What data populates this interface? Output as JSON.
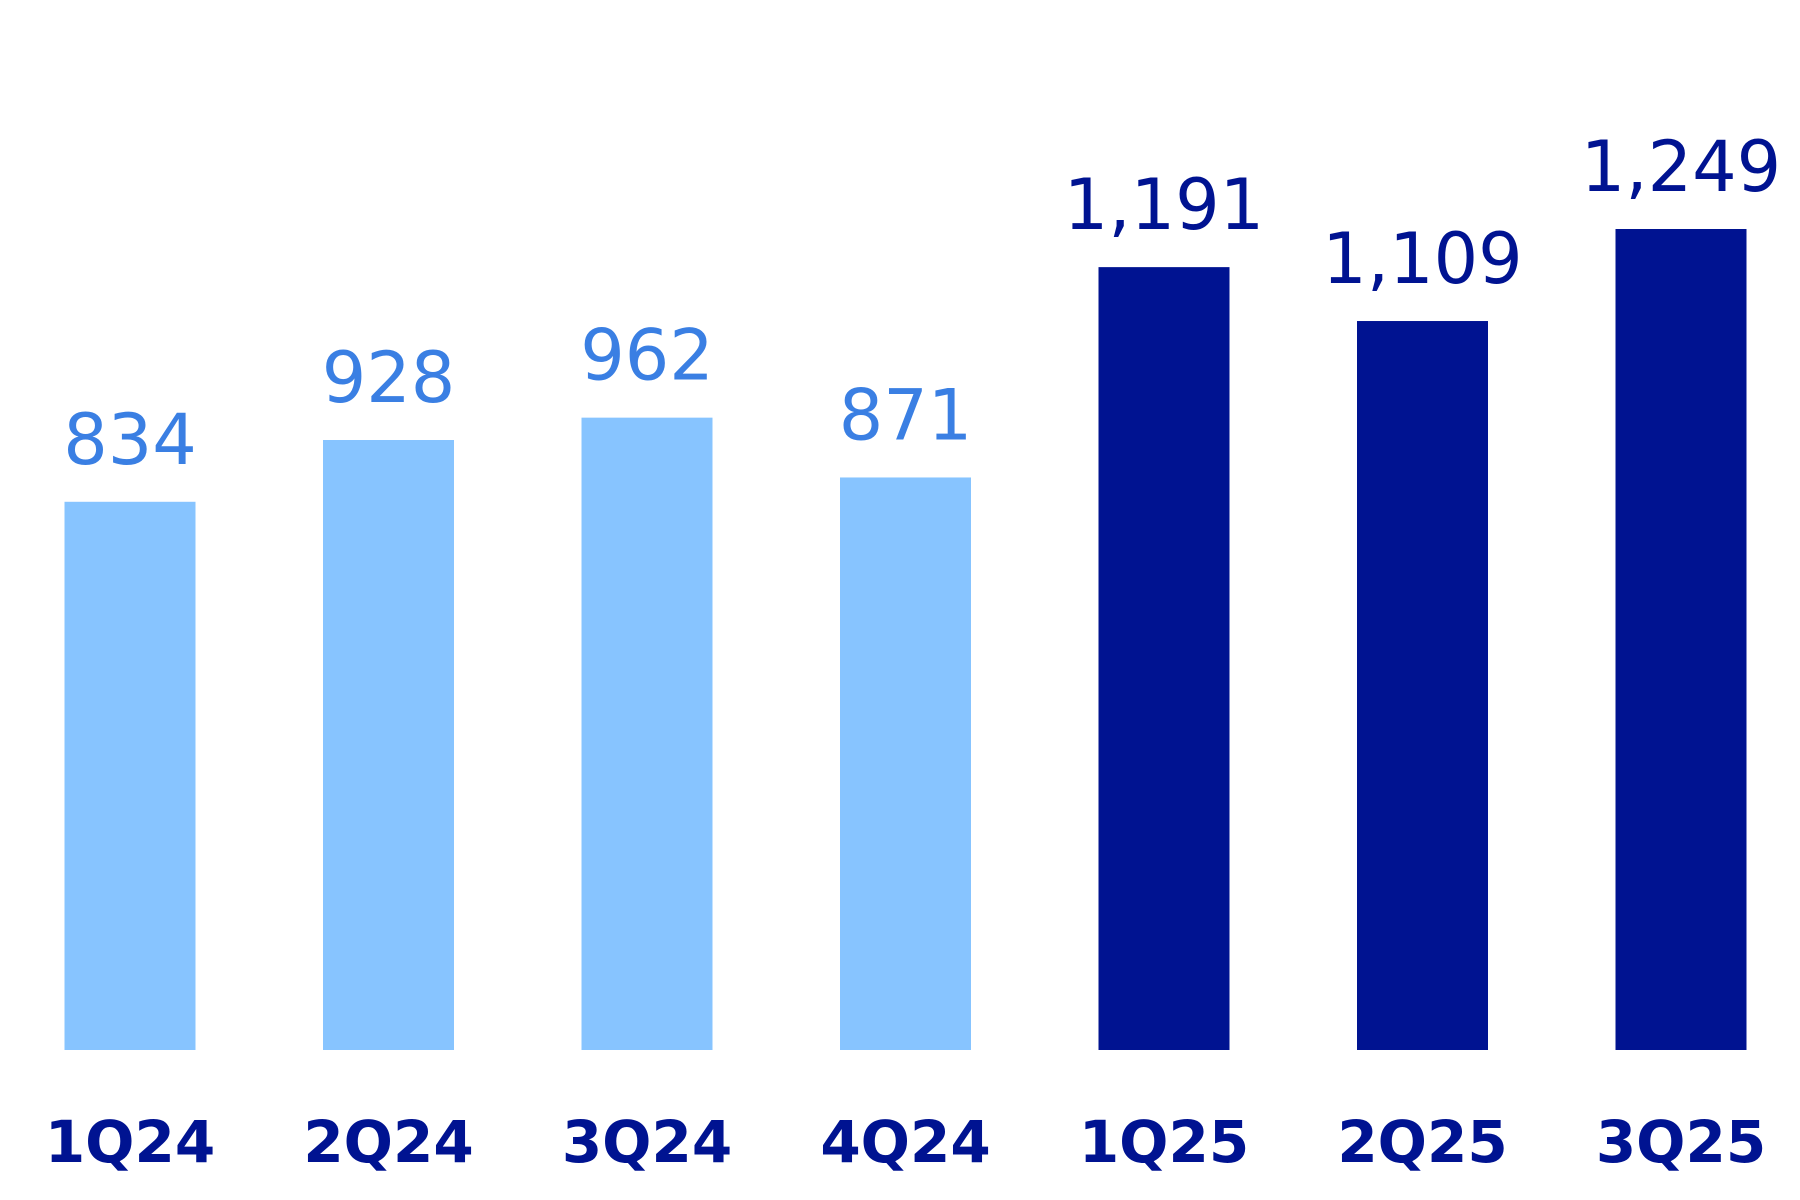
{
  "chart_data": {
    "type": "bar",
    "title": "",
    "xlabel": "",
    "ylabel": "",
    "categories": [
      "1Q24",
      "2Q24",
      "3Q24",
      "4Q24",
      "1Q25",
      "2Q25",
      "3Q25"
    ],
    "values": [
      834,
      928,
      962,
      871,
      1191,
      1109,
      1249
    ],
    "value_labels": [
      "834",
      "928",
      "962",
      "871",
      "1,191",
      "1,109",
      "1,249"
    ],
    "ylim": [
      0,
      1249
    ],
    "grid": false,
    "legend": "none",
    "colors": {
      "bar_2024": "#87C4FF",
      "label_2024": "#3A7FE3",
      "bar_2025": "#001391",
      "label_2025": "#001391",
      "tick_label": "#001391"
    }
  }
}
